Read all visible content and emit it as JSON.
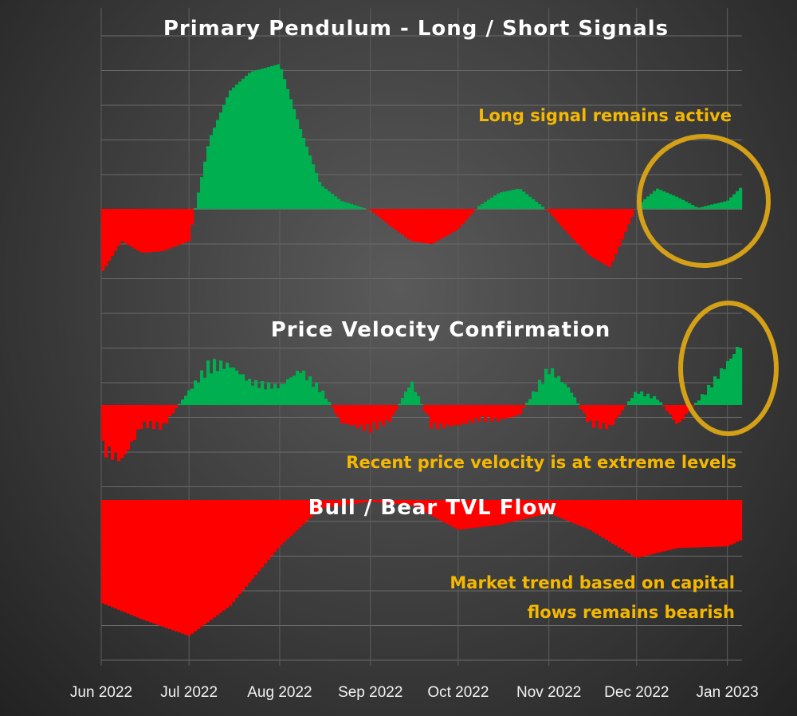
{
  "chart_data": [
    {
      "type": "area",
      "title": "Primary Pendulum - Long / Short Signals",
      "annotation": "Long signal remains active",
      "x": [
        "2022-06-01",
        "2022-06-08",
        "2022-06-15",
        "2022-06-22",
        "2022-07-01",
        "2022-07-08",
        "2022-07-15",
        "2022-07-22",
        "2022-08-01",
        "2022-08-08",
        "2022-08-15",
        "2022-08-22",
        "2022-09-01",
        "2022-09-08",
        "2022-09-15",
        "2022-09-22",
        "2022-10-01",
        "2022-10-08",
        "2022-10-15",
        "2022-10-22",
        "2022-11-01",
        "2022-11-08",
        "2022-11-15",
        "2022-11-22",
        "2022-12-01",
        "2022-12-08",
        "2022-12-15",
        "2022-12-22",
        "2023-01-01",
        "2023-01-06"
      ],
      "values": [
        -1.1,
        -0.55,
        -0.75,
        -0.72,
        -0.55,
        1.3,
        2.2,
        2.55,
        2.7,
        1.5,
        0.45,
        0.15,
        -0.02,
        -0.3,
        -0.55,
        -0.6,
        -0.35,
        0.05,
        0.3,
        0.38,
        -0.05,
        -0.45,
        -0.8,
        -1.0,
        0.05,
        0.38,
        0.22,
        0.02,
        0.15,
        0.42
      ],
      "ylim": [
        -1.4,
        3.0
      ],
      "pos_color": "#00b050",
      "neg_color": "#ff0000"
    },
    {
      "type": "bar",
      "title": "Price Velocity Confirmation",
      "annotation": "Recent price velocity is at extreme levels",
      "x": [
        "2022-06-01",
        "2022-06-08",
        "2022-06-15",
        "2022-06-22",
        "2022-07-01",
        "2022-07-08",
        "2022-07-15",
        "2022-07-22",
        "2022-08-01",
        "2022-08-08",
        "2022-08-15",
        "2022-08-22",
        "2022-09-01",
        "2022-09-08",
        "2022-09-15",
        "2022-09-22",
        "2022-10-01",
        "2022-10-08",
        "2022-10-15",
        "2022-10-22",
        "2022-11-01",
        "2022-11-08",
        "2022-11-15",
        "2022-11-22",
        "2022-12-01",
        "2022-12-08",
        "2022-12-15",
        "2022-12-22",
        "2023-01-01",
        "2023-01-06"
      ],
      "values": [
        -0.9,
        -1.1,
        -0.4,
        -0.45,
        0.3,
        0.9,
        0.85,
        0.5,
        0.4,
        0.75,
        0.35,
        -0.35,
        -0.5,
        -0.3,
        0.5,
        -0.45,
        -0.4,
        -0.3,
        -0.3,
        -0.2,
        0.8,
        0.35,
        -0.4,
        -0.45,
        0.3,
        0.15,
        -0.4,
        0.1,
        0.9,
        1.35
      ],
      "ylim": [
        -1.2,
        1.5
      ],
      "pos_color": "#00b050",
      "neg_color": "#ff0000"
    },
    {
      "type": "area",
      "title": "Bull / Bear TVL Flow",
      "annotation_lines": [
        "Market trend based on capital",
        "flows remains bearish"
      ],
      "x": [
        "2022-06-01",
        "2022-06-15",
        "2022-07-01",
        "2022-07-15",
        "2022-08-01",
        "2022-08-15",
        "2022-09-01",
        "2022-09-15",
        "2022-10-01",
        "2022-10-15",
        "2022-11-01",
        "2022-11-15",
        "2022-12-01",
        "2022-12-15",
        "2023-01-01",
        "2023-01-06"
      ],
      "values": [
        -3.1,
        -3.6,
        -4.1,
        -3.2,
        -1.4,
        -0.25,
        -0.05,
        -0.15,
        -0.9,
        -0.75,
        -0.4,
        -0.9,
        -1.75,
        -1.45,
        -1.4,
        -1.2
      ],
      "ylim": [
        -5.0,
        0
      ],
      "neg_color": "#ff0000"
    }
  ],
  "x_ticks": [
    "Jun 2022",
    "Jul 2022",
    "Aug 2022",
    "Sep 2022",
    "Oct 2022",
    "Nov 2022",
    "Dec 2022",
    "Jan 2023"
  ],
  "x_tick_dates": [
    "2022-06-01",
    "2022-07-01",
    "2022-08-01",
    "2022-09-01",
    "2022-10-01",
    "2022-11-01",
    "2022-12-01",
    "2023-01-01"
  ],
  "x_range": [
    "2022-06-01",
    "2023-01-06"
  ],
  "highlight_color": "#d4a017",
  "annotation_color": "#f5b800"
}
